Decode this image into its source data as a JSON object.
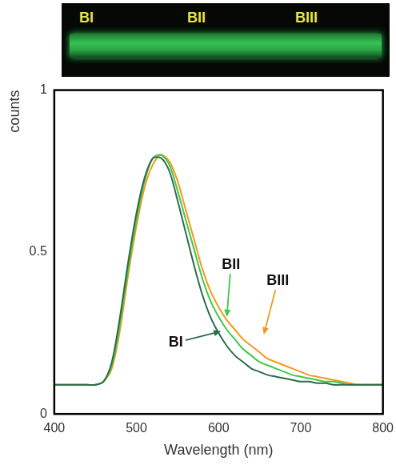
{
  "photo": {
    "labels": [
      "BI",
      "BII",
      "BIII"
    ]
  },
  "chart_data": {
    "type": "line",
    "x_label": "Wavelength (nm)",
    "y_label": "counts",
    "x": [
      400,
      410,
      420,
      430,
      440,
      450,
      460,
      470,
      480,
      490,
      500,
      510,
      520,
      530,
      540,
      550,
      560,
      570,
      580,
      590,
      600,
      610,
      620,
      630,
      640,
      650,
      660,
      670,
      680,
      690,
      700,
      710,
      720,
      730,
      740,
      750,
      760,
      770,
      780,
      790,
      800
    ],
    "series": [
      {
        "name": "BI",
        "color": "#2e6b4a",
        "values": [
          0.09,
          0.09,
          0.09,
          0.09,
          0.09,
          0.09,
          0.1,
          0.16,
          0.3,
          0.47,
          0.62,
          0.73,
          0.79,
          0.79,
          0.75,
          0.66,
          0.56,
          0.46,
          0.37,
          0.3,
          0.25,
          0.21,
          0.18,
          0.16,
          0.14,
          0.13,
          0.12,
          0.115,
          0.11,
          0.105,
          0.1,
          0.1,
          0.095,
          0.095,
          0.09,
          0.09,
          0.09,
          0.09,
          0.09,
          0.09,
          0.09
        ]
      },
      {
        "name": "BII",
        "color": "#3ec94a",
        "values": [
          0.09,
          0.09,
          0.09,
          0.09,
          0.09,
          0.09,
          0.1,
          0.15,
          0.28,
          0.45,
          0.6,
          0.72,
          0.79,
          0.8,
          0.77,
          0.69,
          0.6,
          0.51,
          0.42,
          0.35,
          0.3,
          0.26,
          0.23,
          0.2,
          0.18,
          0.16,
          0.15,
          0.14,
          0.13,
          0.12,
          0.115,
          0.11,
          0.105,
          0.1,
          0.1,
          0.095,
          0.09,
          0.09,
          0.09,
          0.09,
          0.09
        ]
      },
      {
        "name": "BIII",
        "color": "#f39a1e",
        "values": [
          0.09,
          0.09,
          0.09,
          0.09,
          0.09,
          0.09,
          0.1,
          0.14,
          0.26,
          0.43,
          0.58,
          0.7,
          0.77,
          0.8,
          0.78,
          0.72,
          0.63,
          0.54,
          0.45,
          0.38,
          0.33,
          0.29,
          0.26,
          0.23,
          0.21,
          0.19,
          0.17,
          0.16,
          0.15,
          0.14,
          0.13,
          0.12,
          0.115,
          0.11,
          0.105,
          0.1,
          0.095,
          0.09,
          0.09,
          0.09,
          0.09
        ]
      }
    ],
    "annotations": [
      {
        "series": "BI",
        "x": 548,
        "y": 0.22,
        "target": [
          603,
          0.255
        ]
      },
      {
        "series": "BII",
        "x": 615,
        "y": 0.46,
        "target": [
          610,
          0.3
        ]
      },
      {
        "series": "BIII",
        "x": 672,
        "y": 0.41,
        "target": [
          655,
          0.245
        ]
      }
    ],
    "xlim": [
      400,
      800
    ],
    "xticks": [
      400,
      500,
      600,
      700,
      800
    ],
    "ylim": [
      0,
      1
    ],
    "yticks": [
      0,
      0.5,
      1
    ],
    "grid": false
  }
}
